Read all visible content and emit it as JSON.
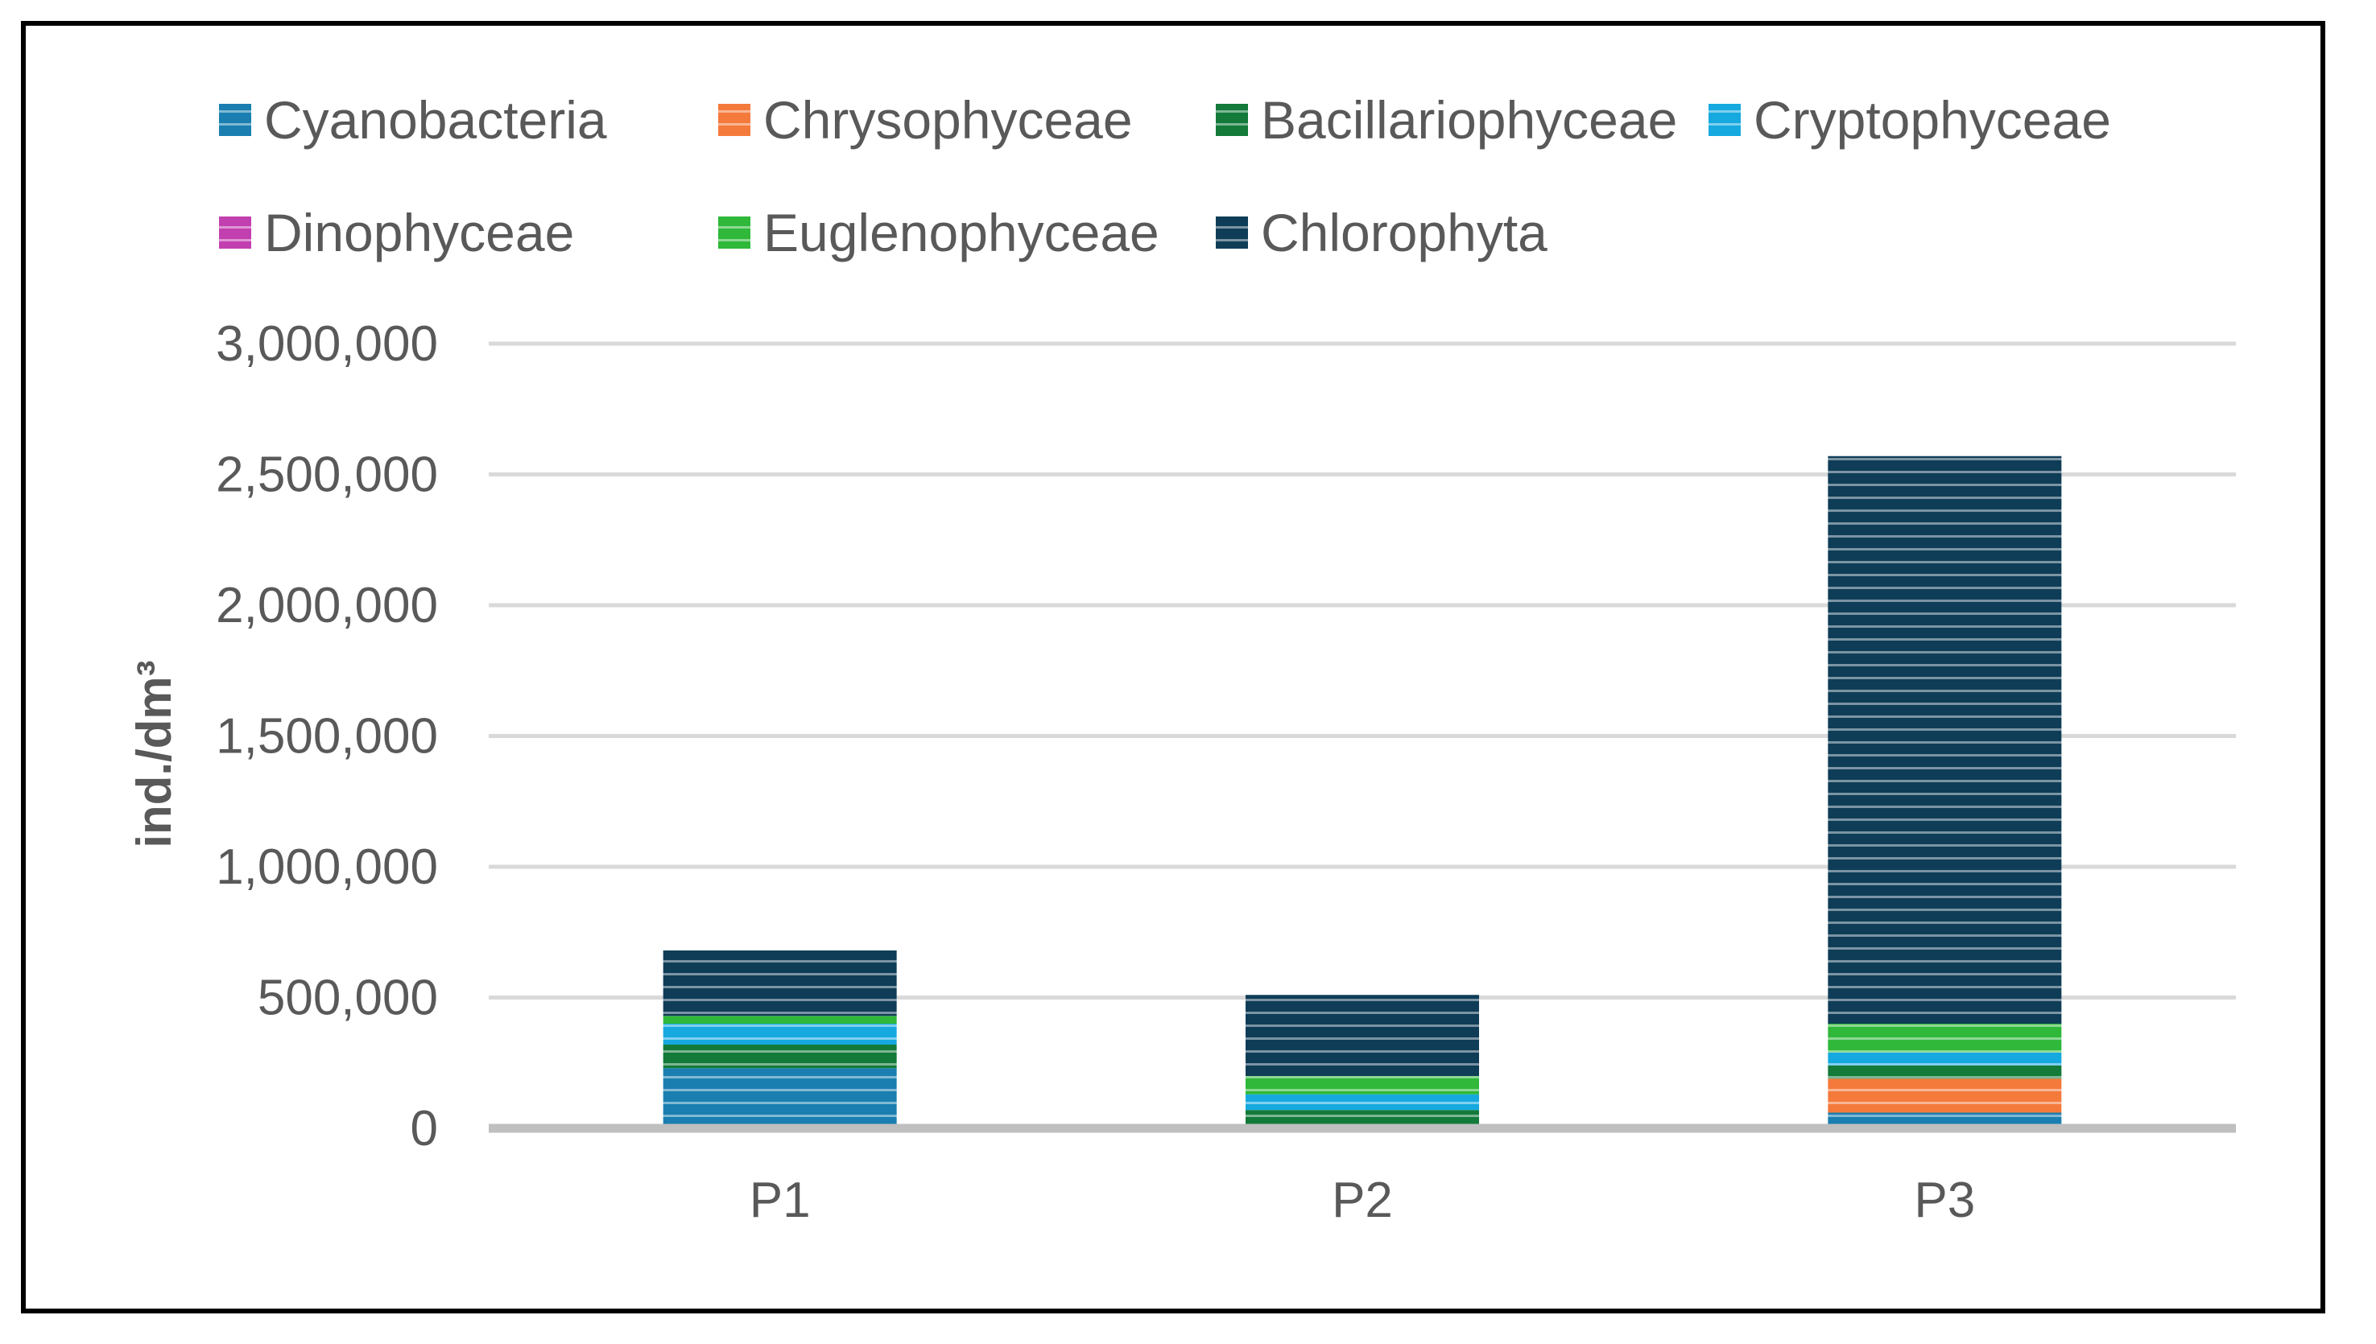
{
  "chart_data": {
    "type": "bar",
    "stacked": true,
    "categories": [
      "P1",
      "P2",
      "P3"
    ],
    "ylabel": "ind./dm³",
    "xlabel": "",
    "ylim": [
      0,
      3000000
    ],
    "yticks": [
      0,
      500000,
      1000000,
      1500000,
      2000000,
      2500000,
      3000000
    ],
    "ytick_labels": [
      "0",
      "500,000",
      "1,000,000",
      "1,500,000",
      "2,000,000",
      "2,500,000",
      "3,000,000"
    ],
    "grid": true,
    "legend_position": "top",
    "series": [
      {
        "name": "Cyanobacteria",
        "color": "#1a7fb0",
        "values": [
          230000,
          0,
          60000
        ]
      },
      {
        "name": "Chrysophyceae",
        "color": "#f47a3c",
        "values": [
          0,
          0,
          130000
        ]
      },
      {
        "name": "Bacillariophyceae",
        "color": "#137a3a",
        "values": [
          90000,
          70000,
          50000
        ]
      },
      {
        "name": "Cryptophyceae",
        "color": "#16a9e0",
        "values": [
          80000,
          60000,
          50000
        ]
      },
      {
        "name": "Dinophyceae",
        "color": "#c23fb0",
        "values": [
          0,
          0,
          0
        ]
      },
      {
        "name": "Euglenophyceae",
        "color": "#2fb83a",
        "values": [
          30000,
          70000,
          110000
        ]
      },
      {
        "name": "Chlorophyta",
        "color": "#0f3d57",
        "values": [
          250000,
          310000,
          2170000
        ]
      }
    ]
  }
}
